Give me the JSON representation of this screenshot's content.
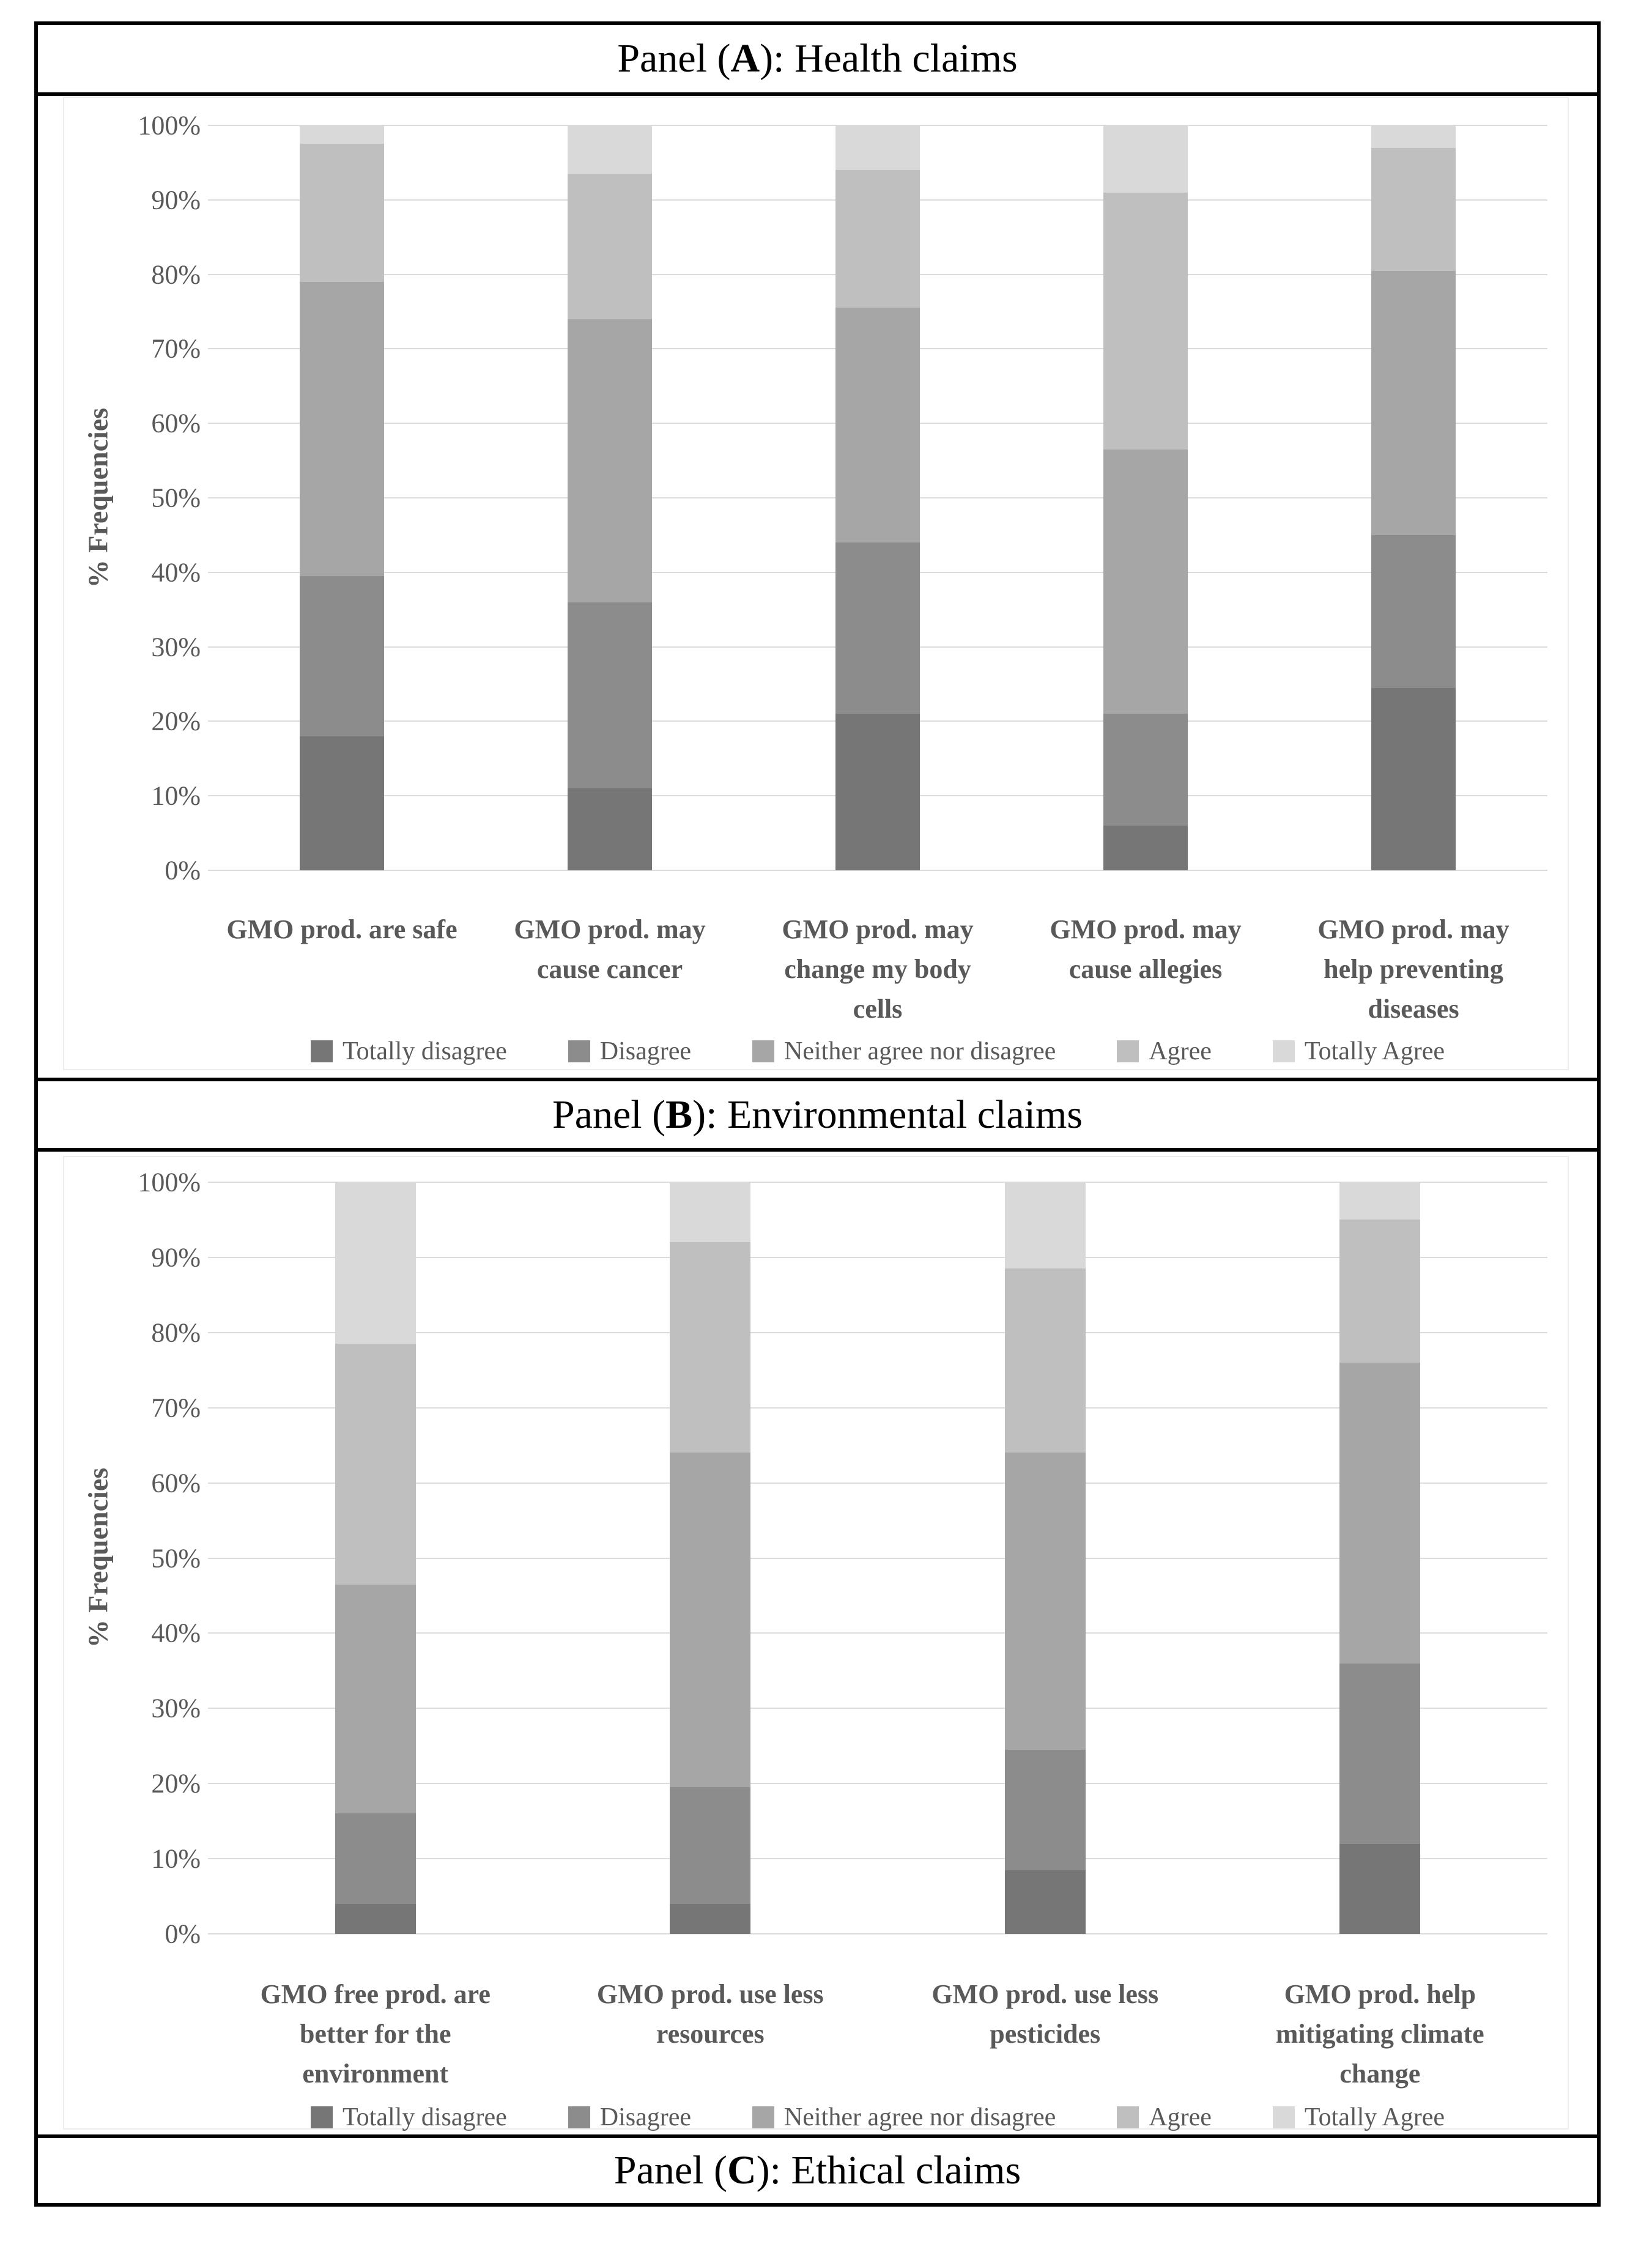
{
  "panels": {
    "a": {
      "prefix": "Panel (",
      "letter": "A",
      "suffix": "): Health claims"
    },
    "b": {
      "prefix": "Panel (",
      "letter": "B",
      "suffix": "): Environmental claims"
    },
    "c": {
      "prefix": "Panel (",
      "letter": "C",
      "suffix": "): Ethical claims"
    }
  },
  "chart_data": [
    {
      "type": "bar",
      "stacking": "percent",
      "panel": "A",
      "title": "Panel (A): Health claims",
      "xlabel": "",
      "ylabel": "% Frequencies",
      "ylim": [
        0,
        100
      ],
      "ytick_step": 10,
      "ytick_suffix": "%",
      "grid": true,
      "legend_position": "bottom",
      "categories": [
        "GMO prod. are safe",
        "GMO prod. may cause cancer",
        "GMO prod. may change my body cells",
        "GMO prod. may cause allegies",
        "GMO prod. may help preventing diseases"
      ],
      "categories_wrapped": [
        [
          "GMO prod. are safe"
        ],
        [
          "GMO prod. may",
          "cause cancer"
        ],
        [
          "GMO prod. may",
          "change my body",
          "cells"
        ],
        [
          "GMO prod. may",
          "cause allegies"
        ],
        [
          "GMO prod. may",
          "help preventing",
          "diseases"
        ]
      ],
      "series": [
        {
          "name": "Totally disagree",
          "color": "#767676",
          "values": [
            18,
            11,
            21,
            6,
            24.5
          ]
        },
        {
          "name": "Disagree",
          "color": "#8c8c8c",
          "values": [
            21.5,
            25,
            23,
            15,
            20.5
          ]
        },
        {
          "name": "Neither agree nor disagree",
          "color": "#a6a6a6",
          "values": [
            39.5,
            38,
            31.5,
            35.5,
            35.5
          ]
        },
        {
          "name": "Agree",
          "color": "#bfbfbf",
          "values": [
            18.5,
            19.5,
            18.5,
            34.5,
            16.5
          ]
        },
        {
          "name": "Totally Agree",
          "color": "#d9d9d9",
          "values": [
            2.5,
            6.5,
            6,
            9,
            3
          ]
        }
      ]
    },
    {
      "type": "bar",
      "stacking": "percent",
      "panel": "B",
      "title": "Panel (B): Environmental claims",
      "xlabel": "",
      "ylabel": "% Frequencies",
      "ylim": [
        0,
        100
      ],
      "ytick_step": 10,
      "ytick_suffix": "%",
      "grid": true,
      "legend_position": "bottom",
      "categories": [
        "GMO free prod. are better for the environment",
        "GMO prod. use less resources",
        "GMO prod. use less pesticides",
        "GMO prod. help mitigating climate change"
      ],
      "categories_wrapped": [
        [
          "GMO free prod. are",
          "better for the",
          "environment"
        ],
        [
          "GMO prod. use less",
          "resources"
        ],
        [
          "GMO prod. use less",
          "pesticides"
        ],
        [
          "GMO prod. help",
          "mitigating climate",
          "change"
        ]
      ],
      "series": [
        {
          "name": "Totally disagree",
          "color": "#767676",
          "values": [
            4,
            4,
            8.5,
            12
          ]
        },
        {
          "name": "Disagree",
          "color": "#8c8c8c",
          "values": [
            12,
            15.5,
            16,
            24
          ]
        },
        {
          "name": "Neither agree nor disagree",
          "color": "#a6a6a6",
          "values": [
            30.5,
            44.5,
            39.5,
            40
          ]
        },
        {
          "name": "Agree",
          "color": "#bfbfbf",
          "values": [
            32,
            28,
            24.5,
            19
          ]
        },
        {
          "name": "Totally Agree",
          "color": "#d9d9d9",
          "values": [
            21.5,
            8,
            11.5,
            5
          ]
        }
      ]
    }
  ]
}
